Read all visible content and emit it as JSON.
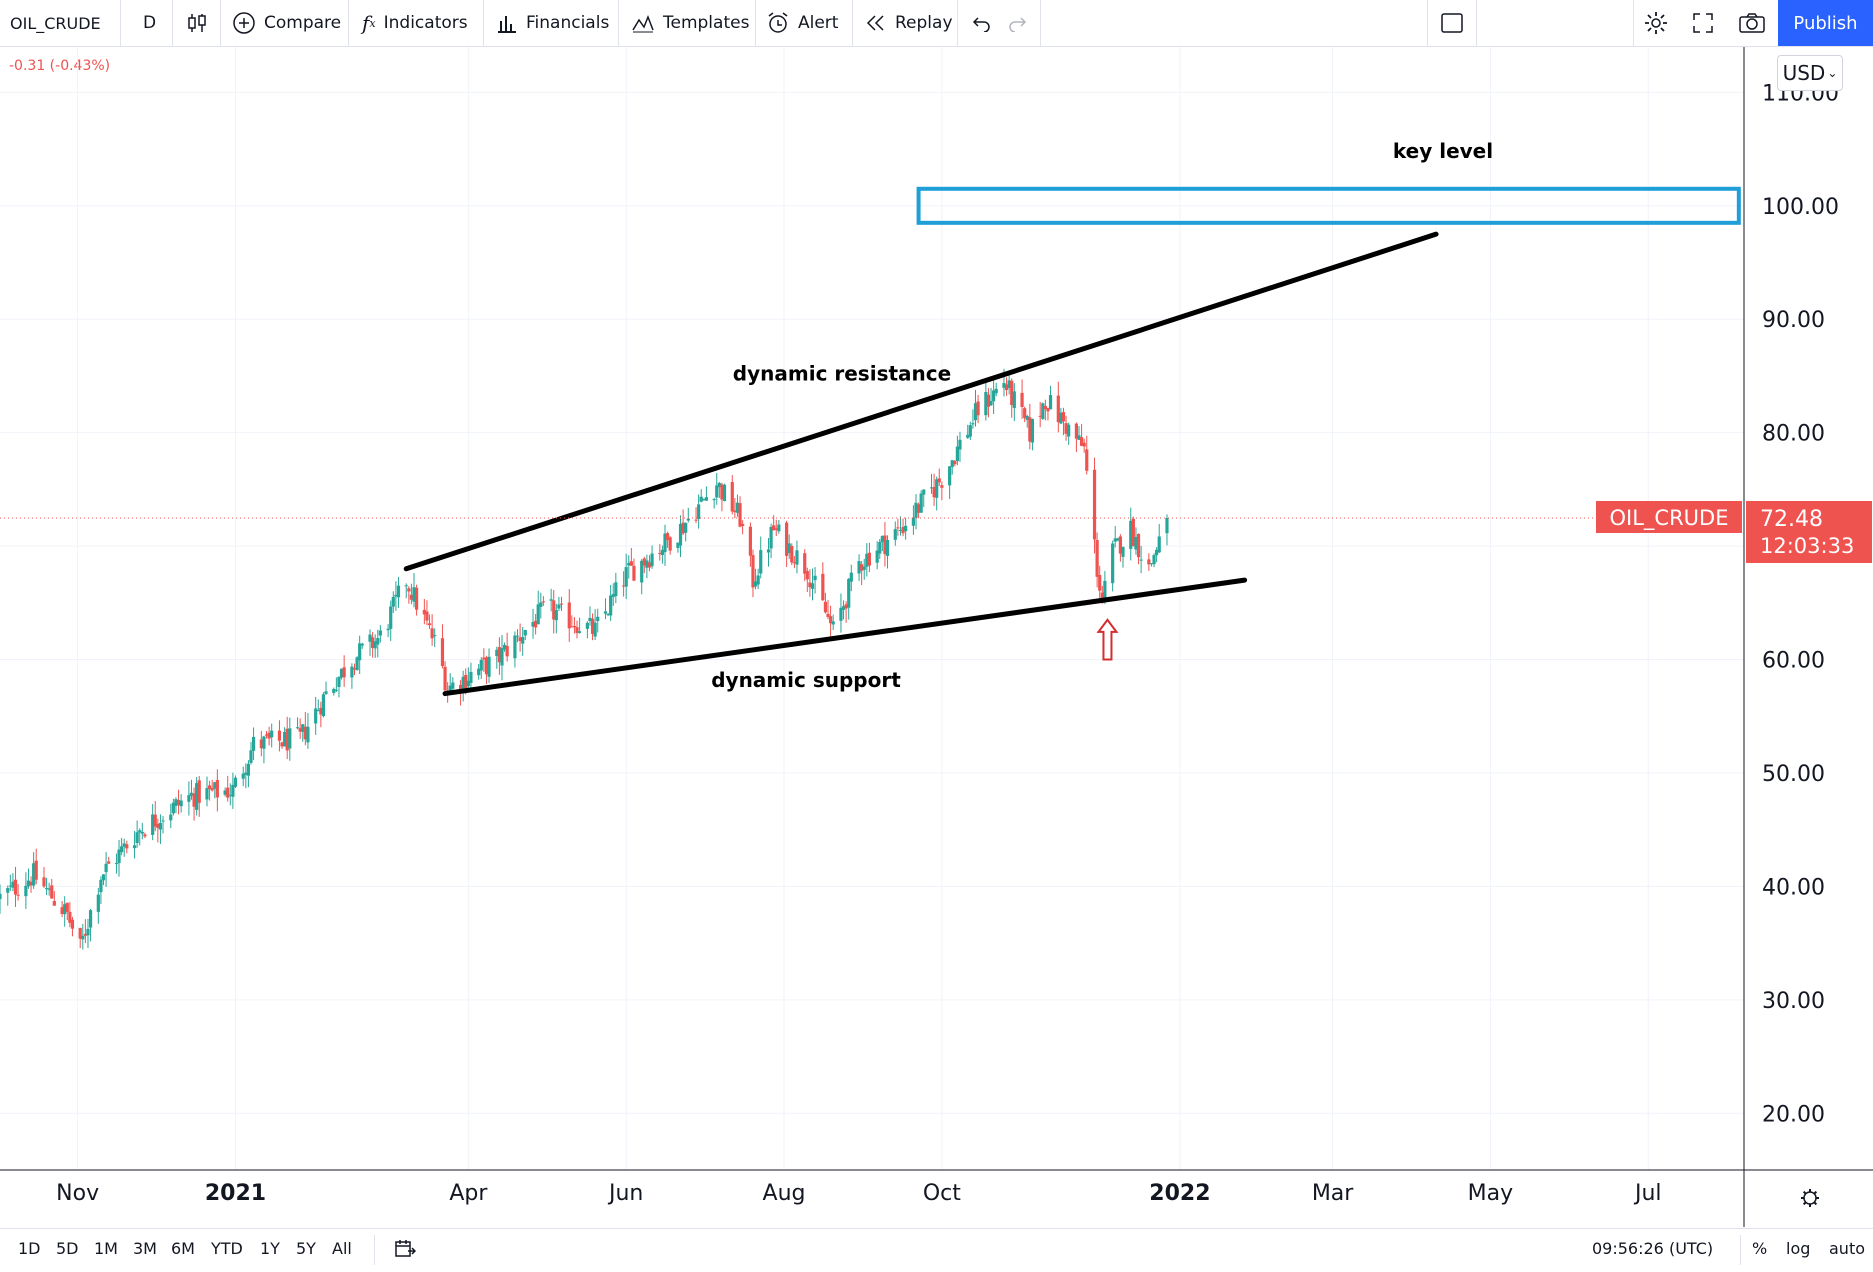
{
  "toolbar": {
    "symbol": "OIL_CRUDE",
    "interval": "D",
    "compare": "Compare",
    "indicators": "Indicators",
    "financials": "Financials",
    "templates": "Templates",
    "alert": "Alert",
    "replay": "Replay",
    "publish": "Publish"
  },
  "price_change": "-0.31 (-0.43%)",
  "currency": "USD",
  "bottom": {
    "ranges": [
      "1D",
      "5D",
      "1M",
      "3M",
      "6M",
      "YTD",
      "1Y",
      "5Y",
      "All"
    ],
    "clock": "09:56:26 (UTC)",
    "percent": "%",
    "log": "log",
    "auto": "auto"
  },
  "colors": {
    "up": "#26a69a",
    "down": "#ef5350",
    "accent": "#2962ff",
    "key_box": "#1e9fd8"
  },
  "chart_data": {
    "type": "candlestick",
    "symbol": "OIL_CRUDE",
    "y_axis": {
      "ticks": [
        20,
        30,
        40,
        50,
        60,
        70,
        80,
        90,
        100,
        110
      ],
      "tick_labels": [
        "20.00",
        "30.00",
        "40.00",
        "50.00",
        "60.00",
        "",
        "80.00",
        "90.00",
        "100.00",
        "110.00"
      ],
      "range": [
        15,
        114
      ]
    },
    "x_axis": {
      "labels": [
        {
          "text": "Nov",
          "date": "2020-11-01",
          "bold": false
        },
        {
          "text": "2021",
          "date": "2021-01-01",
          "bold": true
        },
        {
          "text": "Apr",
          "date": "2021-04-01",
          "bold": false
        },
        {
          "text": "Jun",
          "date": "2021-06-01",
          "bold": false
        },
        {
          "text": "Aug",
          "date": "2021-08-01",
          "bold": false
        },
        {
          "text": "Oct",
          "date": "2021-10-01",
          "bold": false
        },
        {
          "text": "2022",
          "date": "2022-01-01",
          "bold": true
        },
        {
          "text": "Mar",
          "date": "2022-03-01",
          "bold": false
        },
        {
          "text": "May",
          "date": "2022-05-01",
          "bold": false
        },
        {
          "text": "Jul",
          "date": "2022-07-01",
          "bold": false
        }
      ],
      "range": [
        "2020-10-02",
        "2022-08-07"
      ]
    },
    "last_price": {
      "label": "OIL_CRUDE",
      "value": "72.48",
      "countdown": "12:03:33"
    },
    "price_path": [
      [
        "2020-10-02",
        39.0
      ],
      [
        "2020-10-15",
        41.0
      ],
      [
        "2020-10-28",
        37.5
      ],
      [
        "2020-11-02",
        34.5
      ],
      [
        "2020-11-10",
        41.0
      ],
      [
        "2020-11-25",
        45.0
      ],
      [
        "2020-12-15",
        48.0
      ],
      [
        "2020-12-31",
        48.5
      ],
      [
        "2021-01-08",
        52.5
      ],
      [
        "2021-01-26",
        53.0
      ],
      [
        "2021-02-05",
        57.0
      ],
      [
        "2021-02-15",
        60.0
      ],
      [
        "2021-02-26",
        62.0
      ],
      [
        "2021-03-08",
        67.0
      ],
      [
        "2021-03-20",
        61.0
      ],
      [
        "2021-03-24",
        57.5
      ],
      [
        "2021-04-12",
        60.0
      ],
      [
        "2021-05-01",
        64.5
      ],
      [
        "2021-05-20",
        62.5
      ],
      [
        "2021-06-01",
        67.5
      ],
      [
        "2021-06-20",
        71.0
      ],
      [
        "2021-07-06",
        75.5
      ],
      [
        "2021-07-15",
        72.5
      ],
      [
        "2021-07-20",
        67.0
      ],
      [
        "2021-07-28",
        71.5
      ],
      [
        "2021-08-10",
        68.0
      ],
      [
        "2021-08-20",
        62.5
      ],
      [
        "2021-08-30",
        68.5
      ],
      [
        "2021-09-15",
        71.5
      ],
      [
        "2021-10-01",
        76.0
      ],
      [
        "2021-10-15",
        82.0
      ],
      [
        "2021-10-25",
        84.5
      ],
      [
        "2021-11-04",
        80.0
      ],
      [
        "2021-11-10",
        83.0
      ],
      [
        "2021-11-25",
        78.5
      ],
      [
        "2021-11-30",
        68.0
      ],
      [
        "2021-12-02",
        65.0
      ],
      [
        "2021-12-06",
        69.5
      ],
      [
        "2021-12-13",
        71.5
      ],
      [
        "2021-12-20",
        68.0
      ],
      [
        "2021-12-27",
        72.48
      ]
    ],
    "annotations": [
      {
        "type": "text",
        "text": "key level"
      },
      {
        "type": "rectangle",
        "name": "key level zone",
        "y1": 98.5,
        "y2": 101.5,
        "x1": "2021-09-22",
        "x2": "2022-08-05"
      },
      {
        "type": "text",
        "text": "dynamic resistance"
      },
      {
        "type": "trendline",
        "name": "dynamic resistance",
        "from": [
          "2021-03-08",
          68.0
        ],
        "to": [
          "2022-04-10",
          97.5
        ]
      },
      {
        "type": "text",
        "text": "dynamic support"
      },
      {
        "type": "trendline",
        "name": "dynamic support",
        "from": [
          "2021-03-23",
          57.0
        ],
        "to": [
          "2022-01-26",
          67.0
        ]
      },
      {
        "type": "arrow",
        "direction": "up",
        "date": "2021-12-04",
        "from": 60.0,
        "to": 63.5
      }
    ]
  }
}
